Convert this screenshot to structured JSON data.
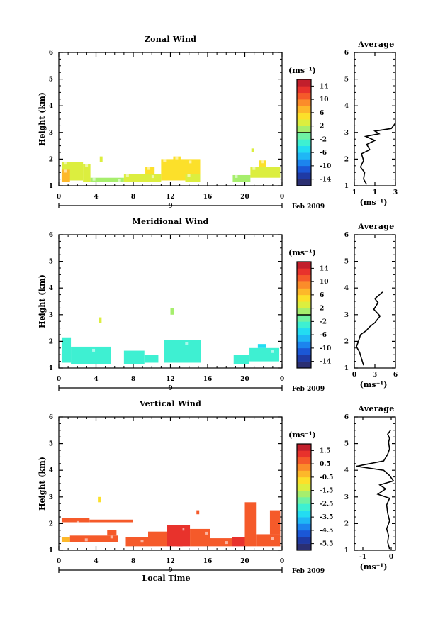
{
  "common": {
    "date_label": "Feb 2009",
    "xlabel": "Local Time",
    "ylabel": "Height (km)",
    "unit_label": "(ms⁻¹)",
    "avg_title": "Average",
    "day_label": "9"
  },
  "chart_data": [
    {
      "type": "heatmap",
      "title": "Zonal Wind",
      "xlabel": "",
      "ylabel": "Height (km)",
      "xlim": [
        0,
        24
      ],
      "ylim": [
        1,
        6
      ],
      "x_ticks": [
        "0",
        "4",
        "8",
        "12",
        "16",
        "20",
        "0"
      ],
      "y_ticks": [
        "1",
        "2",
        "3",
        "4",
        "5",
        "6"
      ],
      "colorbar": {
        "label": "(ms⁻¹)",
        "ticks": [
          "14",
          "10",
          "6",
          "2",
          "-2",
          "-6",
          "-10",
          "-14"
        ],
        "range": [
          -16,
          16
        ],
        "zero": 0
      },
      "cells": [
        {
          "x0": 0.3,
          "x1": 2.6,
          "y0": 1.2,
          "y1": 1.9,
          "v": 3
        },
        {
          "x0": 0.3,
          "x1": 1.2,
          "y0": 1.15,
          "y1": 1.6,
          "v": 6
        },
        {
          "x0": 2.6,
          "x1": 3.4,
          "y0": 1.15,
          "y1": 1.8,
          "v": 3
        },
        {
          "x0": 3.4,
          "x1": 7.0,
          "y0": 1.15,
          "y1": 1.3,
          "v": 0
        },
        {
          "x0": 4.4,
          "x1": 4.7,
          "y0": 1.9,
          "y1": 2.1,
          "v": 2
        },
        {
          "x0": 7.0,
          "x1": 11.0,
          "y0": 1.15,
          "y1": 1.45,
          "v": 3
        },
        {
          "x0": 9.3,
          "x1": 10.3,
          "y0": 1.45,
          "y1": 1.7,
          "v": 4
        },
        {
          "x0": 11.0,
          "x1": 15.2,
          "y0": 1.2,
          "y1": 2.0,
          "v": 4
        },
        {
          "x0": 12.3,
          "x1": 13.1,
          "y0": 1.8,
          "y1": 2.1,
          "v": 5
        },
        {
          "x0": 13.6,
          "x1": 15.2,
          "y0": 1.15,
          "y1": 1.45,
          "v": 2
        },
        {
          "x0": 18.7,
          "x1": 20.6,
          "y0": 1.15,
          "y1": 1.4,
          "v": 1
        },
        {
          "x0": 20.6,
          "x1": 23.8,
          "y0": 1.3,
          "y1": 1.7,
          "v": 3
        },
        {
          "x0": 21.5,
          "x1": 22.3,
          "y0": 1.7,
          "y1": 1.95,
          "v": 5
        },
        {
          "x0": 20.7,
          "x1": 21.0,
          "y0": 2.25,
          "y1": 2.4,
          "v": 3
        }
      ],
      "average": {
        "xlim": [
          1,
          3
        ],
        "x_ticks": [
          "1",
          "1",
          "3"
        ],
        "ylim": [
          1,
          6
        ],
        "y_ticks": [
          "1",
          "2",
          "3",
          "4",
          "5",
          "6"
        ],
        "profile": [
          [
            1.6,
            1.05
          ],
          [
            1.45,
            1.25
          ],
          [
            1.5,
            1.5
          ],
          [
            1.3,
            1.7
          ],
          [
            1.45,
            1.95
          ],
          [
            1.35,
            2.2
          ],
          [
            1.75,
            2.35
          ],
          [
            1.6,
            2.55
          ],
          [
            2.0,
            2.7
          ],
          [
            1.55,
            2.85
          ],
          [
            2.2,
            2.95
          ],
          [
            2.0,
            3.05
          ],
          [
            2.8,
            3.15
          ],
          [
            3.0,
            3.35
          ]
        ]
      }
    },
    {
      "type": "heatmap",
      "title": "Meridional Wind",
      "xlabel": "",
      "ylabel": "Height (km)",
      "xlim": [
        0,
        24
      ],
      "ylim": [
        1,
        6
      ],
      "x_ticks": [
        "0",
        "4",
        "8",
        "12",
        "16",
        "20",
        "0"
      ],
      "y_ticks": [
        "1",
        "2",
        "3",
        "4",
        "5",
        "6"
      ],
      "colorbar": {
        "label": "(ms⁻¹)",
        "ticks": [
          "14",
          "10",
          "6",
          "2",
          "-2",
          "-6",
          "-10",
          "-14"
        ],
        "range": [
          -16,
          16
        ],
        "zero": 0
      },
      "cells": [
        {
          "x0": 0.3,
          "x1": 1.3,
          "y0": 1.2,
          "y1": 2.15,
          "v": -4
        },
        {
          "x0": 1.3,
          "x1": 5.6,
          "y0": 1.15,
          "y1": 1.8,
          "v": -4
        },
        {
          "x0": 4.3,
          "x1": 4.6,
          "y0": 2.7,
          "y1": 2.9,
          "v": 3
        },
        {
          "x0": 7.0,
          "x1": 9.2,
          "y0": 1.15,
          "y1": 1.65,
          "v": -4
        },
        {
          "x0": 9.2,
          "x1": 10.7,
          "y0": 1.2,
          "y1": 1.5,
          "v": -3
        },
        {
          "x0": 11.3,
          "x1": 15.3,
          "y0": 1.2,
          "y1": 2.05,
          "v": -4
        },
        {
          "x0": 12.0,
          "x1": 12.4,
          "y0": 3.0,
          "y1": 3.25,
          "v": 1
        },
        {
          "x0": 18.8,
          "x1": 20.5,
          "y0": 1.15,
          "y1": 1.5,
          "v": -4
        },
        {
          "x0": 20.5,
          "x1": 23.7,
          "y0": 1.25,
          "y1": 1.75,
          "v": -4
        },
        {
          "x0": 21.4,
          "x1": 22.3,
          "y0": 1.75,
          "y1": 1.9,
          "v": -5
        }
      ],
      "average": {
        "xlim": [
          -2,
          6
        ],
        "x_ticks": [
          "0",
          "3",
          "6"
        ],
        "ylim": [
          1,
          6
        ],
        "y_ticks": [
          "1",
          "2",
          "3",
          "4",
          "5",
          "6"
        ],
        "profile": [
          [
            -0.2,
            1.1
          ],
          [
            -0.6,
            1.35
          ],
          [
            -1.0,
            1.6
          ],
          [
            -1.6,
            1.8
          ],
          [
            -1.2,
            2.0
          ],
          [
            -0.8,
            2.25
          ],
          [
            0.3,
            2.4
          ],
          [
            1.0,
            2.55
          ],
          [
            2.0,
            2.7
          ],
          [
            3.0,
            2.95
          ],
          [
            1.8,
            3.2
          ],
          [
            2.6,
            3.45
          ],
          [
            2.0,
            3.6
          ],
          [
            3.5,
            3.85
          ]
        ]
      }
    },
    {
      "type": "heatmap",
      "title": "Vertical Wind",
      "xlabel": "Local Time",
      "ylabel": "Height (km)",
      "xlim": [
        0,
        24
      ],
      "ylim": [
        1,
        6
      ],
      "x_ticks": [
        "0",
        "4",
        "8",
        "12",
        "16",
        "20",
        "0"
      ],
      "y_ticks": [
        "1",
        "2",
        "3",
        "4",
        "5",
        "6"
      ],
      "colorbar": {
        "label": "(ms⁻¹)",
        "ticks": [
          "1.5",
          "0.5",
          "-0.5",
          "-1.5",
          "-2.5",
          "-3.5",
          "-4.5",
          "-5.5"
        ],
        "range": [
          -6,
          2
        ],
        "zero": null
      },
      "cells": [
        {
          "x0": 0.3,
          "x1": 3.3,
          "y0": 2.05,
          "y1": 2.2,
          "v": 0.7
        },
        {
          "x0": 3.3,
          "x1": 8.0,
          "y0": 2.05,
          "y1": 2.15,
          "v": 0.6
        },
        {
          "x0": 0.3,
          "x1": 1.2,
          "y0": 1.3,
          "y1": 1.5,
          "v": -0.4
        },
        {
          "x0": 1.2,
          "x1": 6.4,
          "y0": 1.3,
          "y1": 1.55,
          "v": 0.6
        },
        {
          "x0": 5.2,
          "x1": 6.2,
          "y0": 1.55,
          "y1": 1.75,
          "v": 0.7
        },
        {
          "x0": 4.2,
          "x1": 4.5,
          "y0": 2.8,
          "y1": 3.0,
          "v": -0.8
        },
        {
          "x0": 7.2,
          "x1": 9.6,
          "y0": 1.15,
          "y1": 1.5,
          "v": 0.6
        },
        {
          "x0": 9.6,
          "x1": 11.6,
          "y0": 1.15,
          "y1": 1.7,
          "v": 0.8
        },
        {
          "x0": 11.6,
          "x1": 14.1,
          "y0": 1.15,
          "y1": 1.95,
          "v": 1.0
        },
        {
          "x0": 12.7,
          "x1": 13.3,
          "y0": 1.15,
          "y1": 1.85,
          "v": 1.3
        },
        {
          "x0": 14.1,
          "x1": 16.3,
          "y0": 1.15,
          "y1": 1.8,
          "v": 0.9
        },
        {
          "x0": 16.3,
          "x1": 18.6,
          "y0": 1.15,
          "y1": 1.45,
          "v": 0.6
        },
        {
          "x0": 14.8,
          "x1": 15.1,
          "y0": 2.35,
          "y1": 2.5,
          "v": 0.6
        },
        {
          "x0": 18.6,
          "x1": 20.0,
          "y0": 1.15,
          "y1": 1.5,
          "v": 1.4
        },
        {
          "x0": 20.0,
          "x1": 21.2,
          "y0": 1.15,
          "y1": 2.8,
          "v": 0.5
        },
        {
          "x0": 21.2,
          "x1": 23.8,
          "y0": 1.15,
          "y1": 1.6,
          "v": 0.7
        },
        {
          "x0": 22.7,
          "x1": 23.8,
          "y0": 1.6,
          "y1": 2.5,
          "v": 0.6
        }
      ],
      "average": {
        "xlim": [
          -1.8,
          0.3
        ],
        "x_ticks": [
          "-1",
          "0"
        ],
        "ylim": [
          1,
          6
        ],
        "y_ticks": [
          "1",
          "2",
          "3",
          "4",
          "5",
          "6"
        ],
        "profile": [
          [
            0.0,
            1.05
          ],
          [
            -0.1,
            1.3
          ],
          [
            -0.05,
            1.55
          ],
          [
            -0.15,
            1.8
          ],
          [
            0.0,
            2.1
          ],
          [
            -0.1,
            2.4
          ],
          [
            -0.15,
            2.7
          ],
          [
            0.0,
            2.95
          ],
          [
            -0.6,
            3.1
          ],
          [
            -0.2,
            3.3
          ],
          [
            -0.5,
            3.45
          ],
          [
            0.2,
            3.6
          ],
          [
            0.0,
            3.8
          ],
          [
            -0.3,
            4.0
          ],
          [
            -1.7,
            4.15
          ],
          [
            -0.3,
            4.35
          ],
          [
            -0.1,
            4.6
          ],
          [
            0.0,
            4.8
          ],
          [
            -0.05,
            5.05
          ],
          [
            0.0,
            5.2
          ],
          [
            -0.1,
            5.35
          ],
          [
            0.05,
            5.5
          ]
        ]
      }
    }
  ]
}
